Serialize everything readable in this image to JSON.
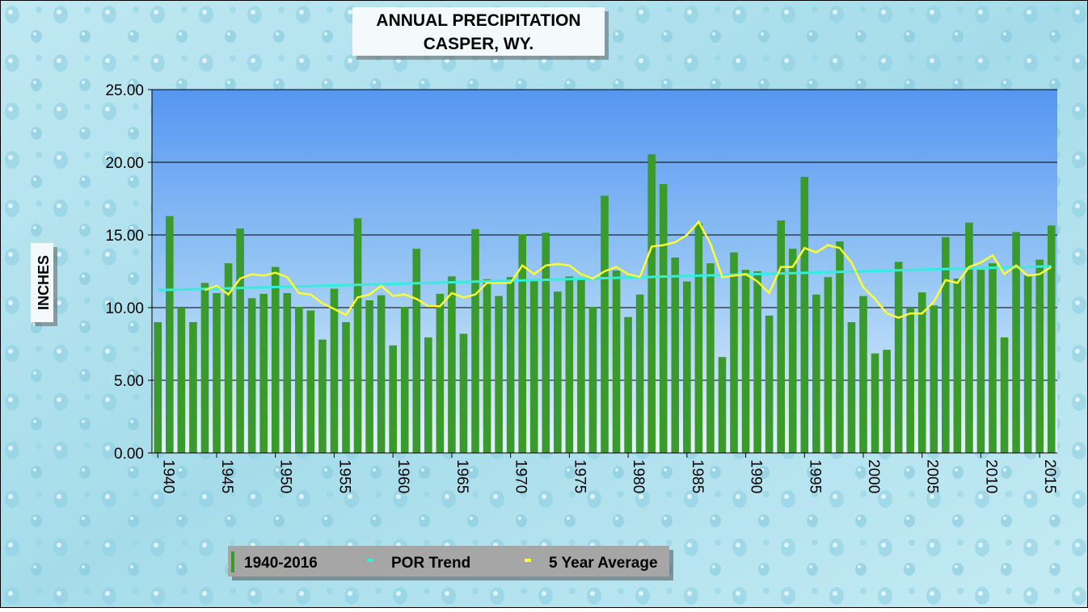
{
  "chart_data": {
    "type": "bar",
    "title": "ANNUAL PRECIPITATION",
    "subtitle": "CASPER, WY.",
    "y_label": "INCHES",
    "x": [
      1940,
      1941,
      1942,
      1943,
      1944,
      1945,
      1946,
      1947,
      1948,
      1949,
      1950,
      1951,
      1952,
      1953,
      1954,
      1955,
      1956,
      1957,
      1958,
      1959,
      1960,
      1961,
      1962,
      1963,
      1964,
      1965,
      1966,
      1967,
      1968,
      1969,
      1970,
      1971,
      1972,
      1973,
      1974,
      1975,
      1976,
      1977,
      1978,
      1979,
      1980,
      1981,
      1982,
      1983,
      1984,
      1985,
      1986,
      1987,
      1988,
      1989,
      1990,
      1991,
      1992,
      1993,
      1994,
      1995,
      1996,
      1997,
      1998,
      1999,
      2000,
      2001,
      2002,
      2003,
      2004,
      2005,
      2006,
      2007,
      2008,
      2009,
      2010,
      2011,
      2012,
      2013,
      2014,
      2015,
      2016
    ],
    "xlim": [
      1939.5,
      2016.5
    ],
    "xticks": [
      1940,
      1945,
      1950,
      1955,
      1960,
      1965,
      1970,
      1975,
      1980,
      1985,
      1990,
      1995,
      2000,
      2005,
      2010,
      2015
    ],
    "ylim": [
      0,
      25
    ],
    "yticks": [
      {
        "value": 0,
        "label": "0.00"
      },
      {
        "value": 5,
        "label": "5.00"
      },
      {
        "value": 10,
        "label": "10.00"
      },
      {
        "value": 15,
        "label": "15.00"
      },
      {
        "value": 20,
        "label": "20.00"
      },
      {
        "value": 25,
        "label": "25.00"
      }
    ],
    "grid": true,
    "series": [
      {
        "name": "1940-2016",
        "type": "bar",
        "color": "#3a9a2c",
        "values": [
          9.0,
          16.3,
          10.0,
          9.0,
          11.7,
          11.0,
          13.05,
          15.45,
          10.65,
          10.95,
          12.8,
          11.0,
          10.05,
          9.8,
          7.8,
          11.3,
          9.0,
          16.15,
          10.5,
          10.85,
          7.4,
          10.05,
          14.05,
          7.95,
          10.95,
          12.15,
          8.2,
          15.4,
          11.95,
          10.8,
          12.1,
          15.05,
          11.95,
          15.15,
          11.1,
          12.15,
          12.0,
          10.05,
          17.7,
          12.55,
          9.35,
          10.9,
          20.55,
          18.5,
          13.45,
          11.8,
          15.8,
          13.05,
          6.6,
          13.8,
          12.6,
          12.5,
          9.45,
          16.0,
          14.05,
          19.0,
          10.9,
          12.1,
          14.55,
          9.0,
          10.8,
          6.85,
          7.1,
          13.15,
          10.0,
          11.05,
          10.15,
          14.85,
          12.0,
          15.85,
          12.6,
          13.05,
          7.95,
          15.2,
          12.2,
          13.3,
          15.65
        ]
      },
      {
        "name": "POR Trend",
        "type": "line",
        "color": "#33eedd",
        "x": [
          1940,
          2016
        ],
        "values": [
          11.2,
          12.85
        ]
      },
      {
        "name": "5 Year Average",
        "type": "line",
        "color": "#ffff33",
        "values": [
          null,
          null,
          null,
          null,
          11.2,
          11.5,
          10.9,
          12.0,
          12.3,
          12.2,
          12.4,
          12.1,
          11.0,
          10.9,
          10.3,
          9.9,
          9.5,
          10.7,
          10.9,
          11.5,
          10.8,
          10.9,
          10.6,
          10.1,
          10.1,
          11.0,
          10.7,
          10.9,
          11.7,
          11.7,
          11.7,
          12.9,
          12.3,
          12.9,
          13.0,
          12.9,
          12.3,
          12.0,
          12.5,
          12.8,
          12.3,
          12.1,
          14.2,
          14.3,
          14.5,
          15.0,
          15.9,
          14.4,
          12.1,
          12.2,
          12.3,
          11.8,
          11.0,
          12.8,
          12.8,
          14.1,
          13.8,
          14.3,
          14.1,
          13.1,
          11.4,
          10.6,
          9.6,
          9.3,
          9.6,
          9.6,
          10.4,
          11.9,
          11.7,
          12.8,
          13.1,
          13.6,
          12.3,
          12.9,
          12.2,
          12.3,
          12.8
        ]
      }
    ]
  }
}
